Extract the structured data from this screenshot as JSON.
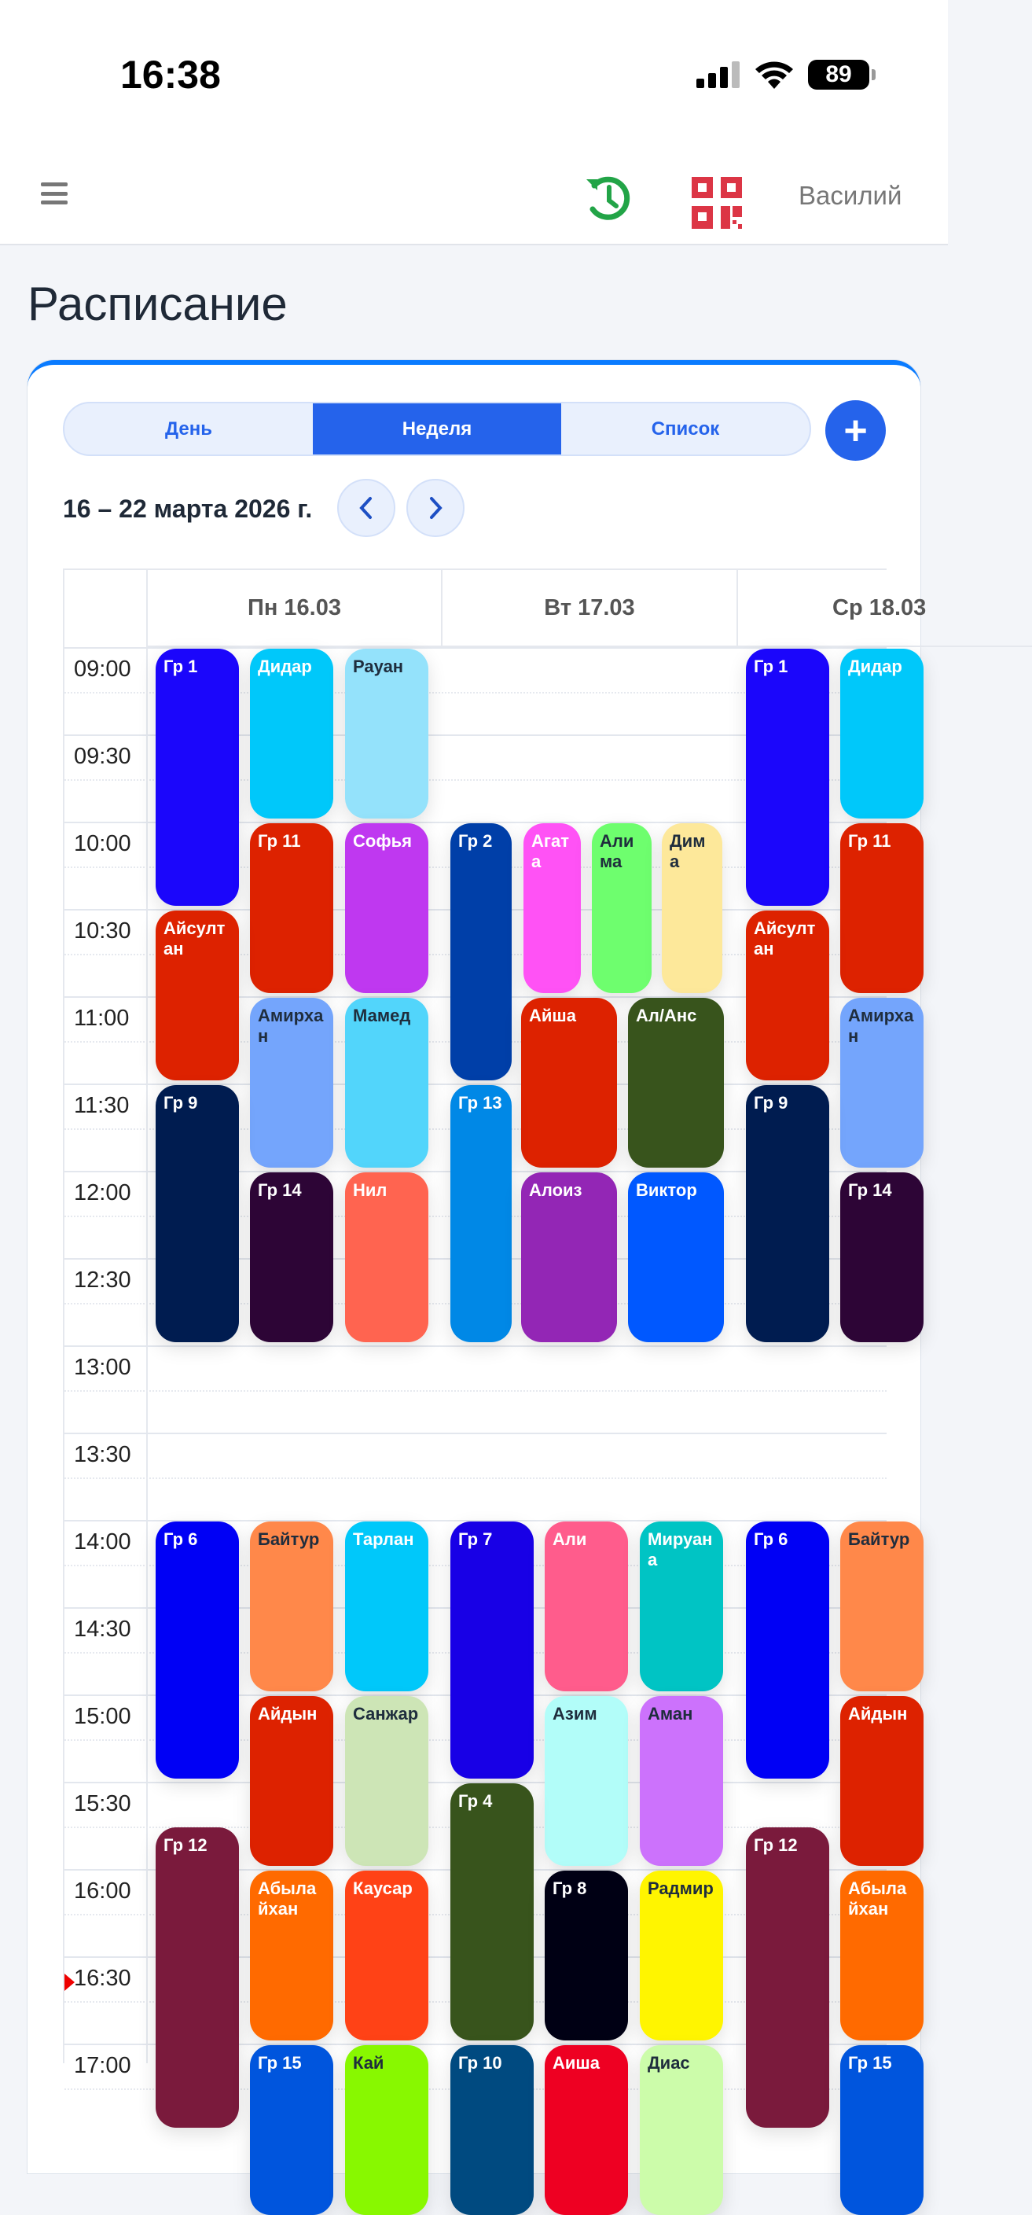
{
  "status_bar": {
    "time": "16:38",
    "battery": "89"
  },
  "header": {
    "user_name": "Василий",
    "icons": [
      "menu-icon",
      "history-icon",
      "qr-code-icon"
    ],
    "history_color": "#22a447",
    "qr_color": "#dc3545"
  },
  "page": {
    "title": "Расписание"
  },
  "view_tabs": [
    {
      "label": "День",
      "active": false
    },
    {
      "label": "Неделя",
      "active": true
    },
    {
      "label": "Список",
      "active": false
    }
  ],
  "add_button": "+",
  "date_range": "16 – 22 марта 2026 г.",
  "days": [
    "Пн 16.03",
    "Вт 17.03",
    "Ср 18.03"
  ],
  "time_labels": [
    "09:00",
    "09:30",
    "10:00",
    "10:30",
    "11:00",
    "11:30",
    "12:00",
    "12:30",
    "13:00",
    "13:30",
    "14:00",
    "14:30",
    "15:00",
    "15:30",
    "16:00",
    "16:30",
    "17:00"
  ],
  "current_time_marker": "16:30",
  "accent_color": "#2563eb",
  "events": [
    {
      "day": 0,
      "start": "09:00",
      "end": "10:30",
      "label": "Гр 1",
      "color": "#1b06fb",
      "text": "#ffffff"
    },
    {
      "day": 0,
      "start": "09:00",
      "end": "10:00",
      "label": "Дидар",
      "color": "#00c8fa",
      "text": "#ffffff"
    },
    {
      "day": 0,
      "start": "09:00",
      "end": "10:00",
      "label": "Рауан",
      "color": "#94e2fb",
      "text": "#1f2d3d"
    },
    {
      "day": 0,
      "start": "10:00",
      "end": "11:00",
      "label": "Гр 11",
      "color": "#dd2200",
      "text": "#ffffff"
    },
    {
      "day": 0,
      "start": "10:00",
      "end": "11:00",
      "label": "Софья",
      "color": "#bf38f0",
      "text": "#ffffff"
    },
    {
      "day": 0,
      "start": "10:30",
      "end": "11:30",
      "label": "Айсултан",
      "color": "#dd2200",
      "text": "#ffffff"
    },
    {
      "day": 0,
      "start": "11:00",
      "end": "12:00",
      "label": "Амирхан",
      "color": "#74a5fc",
      "text": "#1f2d3d"
    },
    {
      "day": 0,
      "start": "11:00",
      "end": "12:00",
      "label": "Мамед",
      "color": "#52d5fb",
      "text": "#1f2d3d"
    },
    {
      "day": 0,
      "start": "11:30",
      "end": "13:00",
      "label": "Гр 9",
      "color": "#001c50",
      "text": "#ffffff"
    },
    {
      "day": 0,
      "start": "12:00",
      "end": "13:00",
      "label": "Гр 14",
      "color": "#2d0536",
      "text": "#ffffff"
    },
    {
      "day": 0,
      "start": "12:00",
      "end": "13:00",
      "label": "Нил",
      "color": "#ff6450",
      "text": "#ffffff"
    },
    {
      "day": 0,
      "start": "14:00",
      "end": "15:30",
      "label": "Гр 6",
      "color": "#0000f5",
      "text": "#ffffff"
    },
    {
      "day": 0,
      "start": "14:00",
      "end": "15:00",
      "label": "Байтур",
      "color": "#ff884a",
      "text": "#1f2d3d"
    },
    {
      "day": 0,
      "start": "14:00",
      "end": "15:00",
      "label": "Тарлан",
      "color": "#00c8fa",
      "text": "#ffffff"
    },
    {
      "day": 0,
      "start": "15:00",
      "end": "16:00",
      "label": "Айдын",
      "color": "#dd2200",
      "text": "#ffffff"
    },
    {
      "day": 0,
      "start": "15:00",
      "end": "16:00",
      "label": "Санжар",
      "color": "#cde5b6",
      "text": "#1f2d3d"
    },
    {
      "day": 0,
      "start": "15:45",
      "end": "17:30",
      "label": "Гр 12",
      "color": "#7a1a3c",
      "text": "#ffffff"
    },
    {
      "day": 0,
      "start": "16:00",
      "end": "17:00",
      "label": "Абылайхан",
      "color": "#ff6a00",
      "text": "#ffffff"
    },
    {
      "day": 0,
      "start": "16:00",
      "end": "17:00",
      "label": "Каусар",
      "color": "#ff4216",
      "text": "#ffffff"
    },
    {
      "day": 0,
      "start": "17:00",
      "end": "18:00",
      "label": "Гр 15",
      "color": "#0055dd",
      "text": "#ffffff"
    },
    {
      "day": 0,
      "start": "17:00",
      "end": "18:00",
      "label": "Кай",
      "color": "#88f800",
      "text": "#1f2d3d"
    },
    {
      "day": 1,
      "start": "10:00",
      "end": "11:30",
      "label": "Гр 2",
      "color": "#003fa8",
      "text": "#ffffff"
    },
    {
      "day": 1,
      "start": "10:00",
      "end": "11:00",
      "label": "Агата",
      "color": "#ff52f5",
      "text": "#ffffff"
    },
    {
      "day": 1,
      "start": "10:00",
      "end": "11:00",
      "label": "Алима",
      "color": "#6efe6e",
      "text": "#1f2d3d"
    },
    {
      "day": 1,
      "start": "10:00",
      "end": "11:00",
      "label": "Дима",
      "color": "#fde89a",
      "text": "#1f2d3d"
    },
    {
      "day": 1,
      "start": "11:00",
      "end": "12:00",
      "label": "Айша",
      "color": "#dd2200",
      "text": "#ffffff"
    },
    {
      "day": 1,
      "start": "11:00",
      "end": "12:00",
      "label": "Ал/Анс",
      "color": "#38541c",
      "text": "#ffffff"
    },
    {
      "day": 1,
      "start": "11:30",
      "end": "13:00",
      "label": "Гр 13",
      "color": "#0088e6",
      "text": "#ffffff"
    },
    {
      "day": 1,
      "start": "12:00",
      "end": "13:00",
      "label": "Алоиз",
      "color": "#9326b5",
      "text": "#ffffff"
    },
    {
      "day": 1,
      "start": "12:00",
      "end": "13:00",
      "label": "Виктор",
      "color": "#0058ff",
      "text": "#ffffff"
    },
    {
      "day": 1,
      "start": "14:00",
      "end": "15:30",
      "label": "Гр 7",
      "color": "#1800e6",
      "text": "#ffffff"
    },
    {
      "day": 1,
      "start": "14:00",
      "end": "15:00",
      "label": "Али",
      "color": "#ff5c8c",
      "text": "#ffffff"
    },
    {
      "day": 1,
      "start": "14:00",
      "end": "15:00",
      "label": "Мируана",
      "color": "#00c4c4",
      "text": "#ffffff"
    },
    {
      "day": 1,
      "start": "15:00",
      "end": "16:00",
      "label": "Азим",
      "color": "#b2fdf9",
      "text": "#1f2d3d"
    },
    {
      "day": 1,
      "start": "15:00",
      "end": "16:00",
      "label": "Аман",
      "color": "#cc72fc",
      "text": "#1f2d3d"
    },
    {
      "day": 1,
      "start": "15:30",
      "end": "17:00",
      "label": "Гр 4",
      "color": "#38541c",
      "text": "#ffffff"
    },
    {
      "day": 1,
      "start": "16:00",
      "end": "17:00",
      "label": "Гр 8",
      "color": "#000014",
      "text": "#ffffff"
    },
    {
      "day": 1,
      "start": "16:00",
      "end": "17:00",
      "label": "Радмир",
      "color": "#fff500",
      "text": "#1f2d3d"
    },
    {
      "day": 1,
      "start": "17:00",
      "end": "18:00",
      "label": "Гр 10",
      "color": "#004a80",
      "text": "#ffffff"
    },
    {
      "day": 1,
      "start": "17:00",
      "end": "18:00",
      "label": "Аиша",
      "color": "#ee0022",
      "text": "#ffffff"
    },
    {
      "day": 1,
      "start": "17:00",
      "end": "18:00",
      "label": "Диас",
      "color": "#ccfcaa",
      "text": "#1f2d3d"
    },
    {
      "day": 2,
      "start": "09:00",
      "end": "10:30",
      "label": "Гр 1",
      "color": "#1b06fb",
      "text": "#ffffff"
    },
    {
      "day": 2,
      "start": "09:00",
      "end": "10:00",
      "label": "Дидар",
      "color": "#00c8fa",
      "text": "#ffffff"
    },
    {
      "day": 2,
      "start": "10:00",
      "end": "11:00",
      "label": "Гр 11",
      "color": "#dd2200",
      "text": "#ffffff"
    },
    {
      "day": 2,
      "start": "10:30",
      "end": "11:30",
      "label": "Айсултан",
      "color": "#dd2200",
      "text": "#ffffff"
    },
    {
      "day": 2,
      "start": "11:00",
      "end": "12:00",
      "label": "Амирхан",
      "color": "#74a5fc",
      "text": "#1f2d3d"
    },
    {
      "day": 2,
      "start": "11:30",
      "end": "13:00",
      "label": "Гр 9",
      "color": "#001c50",
      "text": "#ffffff"
    },
    {
      "day": 2,
      "start": "12:00",
      "end": "13:00",
      "label": "Гр 14",
      "color": "#2d0536",
      "text": "#ffffff"
    },
    {
      "day": 2,
      "start": "14:00",
      "end": "15:30",
      "label": "Гр 6",
      "color": "#0000f5",
      "text": "#ffffff"
    },
    {
      "day": 2,
      "start": "14:00",
      "end": "15:00",
      "label": "Байтур",
      "color": "#ff884a",
      "text": "#1f2d3d"
    },
    {
      "day": 2,
      "start": "15:00",
      "end": "16:00",
      "label": "Айдын",
      "color": "#dd2200",
      "text": "#ffffff"
    },
    {
      "day": 2,
      "start": "15:45",
      "end": "17:30",
      "label": "Гр 12",
      "color": "#7a1a3c",
      "text": "#ffffff"
    },
    {
      "day": 2,
      "start": "16:00",
      "end": "17:00",
      "label": "Абылайхан",
      "color": "#ff6a00",
      "text": "#ffffff"
    },
    {
      "day": 2,
      "start": "17:00",
      "end": "18:00",
      "label": "Гр 15",
      "color": "#0055dd",
      "text": "#ffffff"
    }
  ]
}
